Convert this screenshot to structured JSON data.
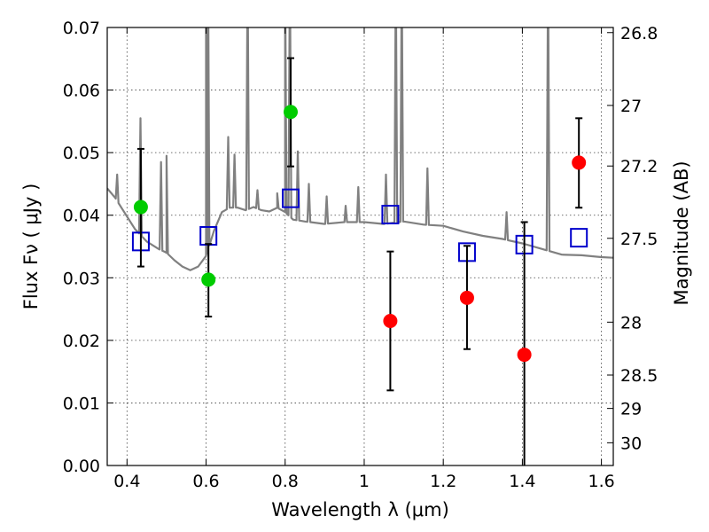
{
  "chart_data": {
    "type": "scatter",
    "xlim": [
      0.35,
      1.63
    ],
    "ylim": [
      0.0,
      0.07
    ],
    "grid": true,
    "xlabel": "Wavelength  λ (μm)",
    "ylabel": "Flux  Fν  ( μJy )",
    "ylabel_right": "Magnitude (AB)",
    "x_ticks": [
      {
        "value": 0.4,
        "label": "0.4"
      },
      {
        "value": 0.6,
        "label": "0.6"
      },
      {
        "value": 0.8,
        "label": "0.8"
      },
      {
        "value": 1.0,
        "label": "1"
      },
      {
        "value": 1.2,
        "label": "1.2"
      },
      {
        "value": 1.4,
        "label": "1.4"
      },
      {
        "value": 1.6,
        "label": "1.6"
      }
    ],
    "y_ticks": [
      {
        "value": 0.0,
        "label": "0.00"
      },
      {
        "value": 0.01,
        "label": "0.01"
      },
      {
        "value": 0.02,
        "label": "0.02"
      },
      {
        "value": 0.03,
        "label": "0.03"
      },
      {
        "value": 0.04,
        "label": "0.04"
      },
      {
        "value": 0.05,
        "label": "0.05"
      },
      {
        "value": 0.06,
        "label": "0.06"
      },
      {
        "value": 0.07,
        "label": "0.07"
      }
    ],
    "right_ticks": [
      {
        "mag": 26.8,
        "label": "26.8"
      },
      {
        "mag": 27.0,
        "label": "27"
      },
      {
        "mag": 27.2,
        "label": "27.2"
      },
      {
        "mag": 27.5,
        "label": "27.5"
      },
      {
        "mag": 28.0,
        "label": "28"
      },
      {
        "mag": 28.5,
        "label": "28.5"
      },
      {
        "mag": 29.0,
        "label": "29"
      },
      {
        "mag": 30.0,
        "label": "30"
      }
    ],
    "series": [
      {
        "kind": "measured",
        "color": "#00cc00",
        "points": [
          {
            "x": 0.435,
            "y": 0.0413,
            "err_low": 0.0318,
            "err_high": 0.0506
          },
          {
            "x": 0.606,
            "y": 0.0297,
            "err_low": 0.0238,
            "err_high": 0.0354
          },
          {
            "x": 0.814,
            "y": 0.0565,
            "err_low": 0.0478,
            "err_high": 0.0651
          }
        ]
      },
      {
        "kind": "measured",
        "color": "#ff0000",
        "points": [
          {
            "x": 1.066,
            "y": 0.0231,
            "err_low": 0.012,
            "err_high": 0.0342
          },
          {
            "x": 1.26,
            "y": 0.0268,
            "err_low": 0.0186,
            "err_high": 0.0351
          },
          {
            "x": 1.405,
            "y": 0.0177,
            "err_low": 0.0,
            "err_high": 0.0389
          },
          {
            "x": 1.543,
            "y": 0.0484,
            "err_low": 0.0412,
            "err_high": 0.0555
          }
        ]
      },
      {
        "kind": "model",
        "color": "#0000cc",
        "points": [
          {
            "x": 0.435,
            "y": 0.0358
          },
          {
            "x": 0.606,
            "y": 0.0367
          },
          {
            "x": 0.814,
            "y": 0.0427
          },
          {
            "x": 1.066,
            "y": 0.0401
          },
          {
            "x": 1.26,
            "y": 0.0341
          },
          {
            "x": 1.405,
            "y": 0.0353
          },
          {
            "x": 1.543,
            "y": 0.0364
          }
        ]
      },
      {
        "kind": "template-spectrum",
        "color": "#808080",
        "continuum": [
          [
            0.35,
            0.0443
          ],
          [
            0.37,
            0.0428
          ],
          [
            0.39,
            0.0408
          ],
          [
            0.42,
            0.0378
          ],
          [
            0.45,
            0.0358
          ],
          [
            0.48,
            0.0346
          ],
          [
            0.5,
            0.034
          ],
          [
            0.52,
            0.0328
          ],
          [
            0.54,
            0.0318
          ],
          [
            0.56,
            0.0312
          ],
          [
            0.58,
            0.0318
          ],
          [
            0.6,
            0.0335
          ],
          [
            0.62,
            0.0375
          ],
          [
            0.64,
            0.0405
          ],
          [
            0.66,
            0.0412
          ],
          [
            0.68,
            0.0412
          ],
          [
            0.7,
            0.0408
          ],
          [
            0.72,
            0.0413
          ],
          [
            0.74,
            0.0408
          ],
          [
            0.76,
            0.0406
          ],
          [
            0.78,
            0.0412
          ],
          [
            0.8,
            0.0405
          ],
          [
            0.82,
            0.0393
          ],
          [
            0.85,
            0.039
          ],
          [
            0.9,
            0.0386
          ],
          [
            0.95,
            0.0389
          ],
          [
            1.0,
            0.0389
          ],
          [
            1.05,
            0.0386
          ],
          [
            1.1,
            0.039
          ],
          [
            1.15,
            0.0385
          ],
          [
            1.2,
            0.0383
          ],
          [
            1.25,
            0.0374
          ],
          [
            1.3,
            0.0367
          ],
          [
            1.35,
            0.0362
          ],
          [
            1.4,
            0.0355
          ],
          [
            1.45,
            0.0346
          ],
          [
            1.5,
            0.0337
          ],
          [
            1.55,
            0.0336
          ],
          [
            1.6,
            0.0333
          ],
          [
            1.63,
            0.0332
          ]
        ],
        "lines": [
          [
            0.375,
            0.0465
          ],
          [
            0.434,
            0.0555
          ],
          [
            0.486,
            0.0485
          ],
          [
            0.5,
            0.0495
          ],
          [
            0.6,
            0.08
          ],
          [
            0.605,
            0.08
          ],
          [
            0.656,
            0.0525
          ],
          [
            0.672,
            0.0497
          ],
          [
            0.705,
            0.08
          ],
          [
            0.73,
            0.044
          ],
          [
            0.78,
            0.0435
          ],
          [
            0.8,
            0.08
          ],
          [
            0.812,
            0.08
          ],
          [
            0.832,
            0.0502
          ],
          [
            0.86,
            0.045
          ],
          [
            0.905,
            0.043
          ],
          [
            0.953,
            0.0415
          ],
          [
            0.985,
            0.0445
          ],
          [
            1.055,
            0.0465
          ],
          [
            1.08,
            0.08
          ],
          [
            1.095,
            0.08
          ],
          [
            1.16,
            0.0475
          ],
          [
            1.36,
            0.0405
          ],
          [
            1.465,
            0.08
          ]
        ]
      }
    ]
  }
}
